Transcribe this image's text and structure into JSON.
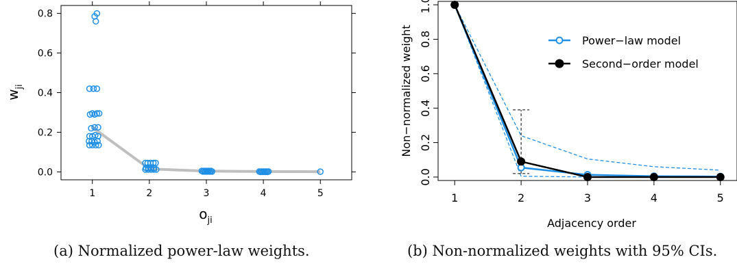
{
  "chart_data": [
    {
      "type": "scatter",
      "xlabel_base": "o",
      "xlabel_sub": "ji",
      "ylabel_base": "w",
      "ylabel_sub": "ji",
      "xlim": [
        0.45,
        5.55
      ],
      "ylim": [
        -0.04,
        0.84
      ],
      "xticks": [
        "1",
        "2",
        "3",
        "4",
        "5"
      ],
      "yticks": [
        "0.0",
        "0.2",
        "0.4",
        "0.6",
        "0.8"
      ],
      "point_color": "#1f8fe6",
      "line_color": "#bfbfbf",
      "points": [
        {
          "x": 1.04,
          "y": 0.785
        },
        {
          "x": 1.08,
          "y": 0.8
        },
        {
          "x": 1.06,
          "y": 0.76
        },
        {
          "x": 0.95,
          "y": 0.42
        },
        {
          "x": 1.02,
          "y": 0.42
        },
        {
          "x": 1.08,
          "y": 0.42
        },
        {
          "x": 0.96,
          "y": 0.29
        },
        {
          "x": 1.0,
          "y": 0.295
        },
        {
          "x": 1.04,
          "y": 0.29
        },
        {
          "x": 1.08,
          "y": 0.295
        },
        {
          "x": 1.12,
          "y": 0.295
        },
        {
          "x": 0.98,
          "y": 0.22
        },
        {
          "x": 1.04,
          "y": 0.225
        },
        {
          "x": 1.1,
          "y": 0.225
        },
        {
          "x": 0.95,
          "y": 0.18
        },
        {
          "x": 1.0,
          "y": 0.18
        },
        {
          "x": 1.05,
          "y": 0.185
        },
        {
          "x": 1.1,
          "y": 0.18
        },
        {
          "x": 0.94,
          "y": 0.155
        },
        {
          "x": 0.99,
          "y": 0.155
        },
        {
          "x": 1.04,
          "y": 0.15
        },
        {
          "x": 1.09,
          "y": 0.155
        },
        {
          "x": 0.95,
          "y": 0.135
        },
        {
          "x": 1.0,
          "y": 0.135
        },
        {
          "x": 1.06,
          "y": 0.135
        },
        {
          "x": 1.11,
          "y": 0.135
        },
        {
          "x": 1.93,
          "y": 0.045
        },
        {
          "x": 1.97,
          "y": 0.045
        },
        {
          "x": 2.02,
          "y": 0.045
        },
        {
          "x": 2.07,
          "y": 0.045
        },
        {
          "x": 2.11,
          "y": 0.045
        },
        {
          "x": 1.94,
          "y": 0.02
        },
        {
          "x": 1.98,
          "y": 0.02
        },
        {
          "x": 2.03,
          "y": 0.02
        },
        {
          "x": 2.08,
          "y": 0.02
        },
        {
          "x": 1.93,
          "y": 0.012
        },
        {
          "x": 1.98,
          "y": 0.012
        },
        {
          "x": 2.03,
          "y": 0.012
        },
        {
          "x": 2.08,
          "y": 0.012
        },
        {
          "x": 2.12,
          "y": 0.012
        },
        {
          "x": 2.92,
          "y": 0.005
        },
        {
          "x": 2.96,
          "y": 0.005
        },
        {
          "x": 3.0,
          "y": 0.005
        },
        {
          "x": 3.04,
          "y": 0.005
        },
        {
          "x": 3.08,
          "y": 0.005
        },
        {
          "x": 2.94,
          "y": 0.002
        },
        {
          "x": 2.98,
          "y": 0.002
        },
        {
          "x": 3.02,
          "y": 0.002
        },
        {
          "x": 3.06,
          "y": 0.002
        },
        {
          "x": 3.1,
          "y": 0.002
        },
        {
          "x": 3.93,
          "y": 0.002
        },
        {
          "x": 3.97,
          "y": 0.002
        },
        {
          "x": 4.01,
          "y": 0.002
        },
        {
          "x": 4.05,
          "y": 0.002
        },
        {
          "x": 4.09,
          "y": 0.002
        },
        {
          "x": 3.95,
          "y": 0.0
        },
        {
          "x": 3.99,
          "y": 0.0
        },
        {
          "x": 4.03,
          "y": 0.0
        },
        {
          "x": 4.07,
          "y": 0.0
        },
        {
          "x": 5.0,
          "y": 0.001
        }
      ],
      "mean_line": {
        "x": [
          1,
          2,
          3,
          4,
          5
        ],
        "y": [
          0.225,
          0.015,
          0.004,
          0.002,
          0.001
        ]
      }
    },
    {
      "type": "line",
      "xlabel": "Adjacency order",
      "ylabel": "Non−normalized weight",
      "xlim": [
        0.75,
        5.25
      ],
      "ylim": [
        -0.02,
        1.02
      ],
      "xticks": [
        "1",
        "2",
        "3",
        "4",
        "5"
      ],
      "yticks": [
        "0.0",
        "0.2",
        "0.4",
        "0.6",
        "0.8",
        "1.0"
      ],
      "legend_position": "top-right",
      "x": [
        1,
        2,
        3,
        4,
        5
      ],
      "series": [
        {
          "name": "Power−law model",
          "color": "#1f8fe6",
          "marker": "open-circle",
          "values": [
            1.0,
            0.055,
            0.013,
            0.005,
            0.003
          ]
        },
        {
          "name": "Second−order model",
          "color": "#000000",
          "marker": "filled-circle",
          "values": [
            1.0,
            0.09,
            0.0,
            0.0,
            0.0
          ]
        }
      ],
      "power_law_ci": {
        "lower": [
          1.0,
          0.005,
          0.0,
          0.0,
          0.0
        ],
        "upper": [
          1.0,
          0.24,
          0.105,
          0.06,
          0.04
        ]
      },
      "second_order_ci": {
        "x": 2,
        "lower": 0.02,
        "upper": 0.39
      }
    }
  ],
  "captions": {
    "a": "(a) Normalized power-law weights.",
    "b": "(b) Non-normalized weights with 95% CIs."
  }
}
